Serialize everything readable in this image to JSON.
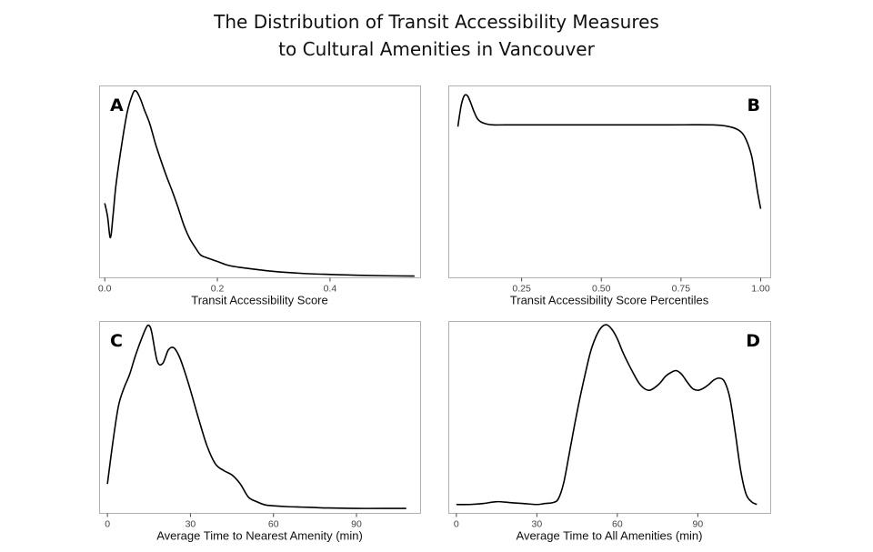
{
  "figure": {
    "title_line1": "The Distribution of Transit Accessibility Measures",
    "title_line2": "to Cultural Amenities in Vancouver"
  },
  "chart_data": [
    {
      "type": "line",
      "panel": "A",
      "letter_position": "top-left",
      "xlabel": "Transit Accessibility Score",
      "ylabel": "",
      "xlim": [
        -0.01,
        0.56
      ],
      "ylim": [
        0,
        14.5
      ],
      "xticks": [
        0.0,
        0.2,
        0.4
      ],
      "xtick_labels": [
        "0.0",
        "0.2",
        "0.4"
      ],
      "grid": false,
      "series": [
        {
          "x": [
            0.0,
            0.005,
            0.01,
            0.015,
            0.02,
            0.03,
            0.04,
            0.05,
            0.055,
            0.06,
            0.065,
            0.07,
            0.08,
            0.09,
            0.1,
            0.11,
            0.12,
            0.13,
            0.14,
            0.15,
            0.16,
            0.17,
            0.18,
            0.2,
            0.22,
            0.25,
            0.3,
            0.35,
            0.4,
            0.45,
            0.5,
            0.55
          ],
          "y": [
            5.6,
            4.6,
            3.0,
            4.8,
            7.0,
            10.0,
            12.5,
            13.9,
            14.1,
            13.8,
            13.3,
            12.7,
            11.6,
            10.1,
            8.8,
            7.6,
            6.5,
            5.3,
            4.0,
            3.0,
            2.3,
            1.7,
            1.5,
            1.2,
            0.9,
            0.7,
            0.45,
            0.3,
            0.22,
            0.16,
            0.12,
            0.1
          ]
        }
      ]
    },
    {
      "type": "line",
      "panel": "B",
      "letter_position": "top-right",
      "xlabel": "Transit Accessibility Score Percentiles",
      "ylabel": "",
      "xlim": [
        0.02,
        1.03
      ],
      "ylim": [
        0,
        1.12
      ],
      "xticks": [
        0.25,
        0.5,
        0.75,
        1.0
      ],
      "xtick_labels": [
        "0.25",
        "0.50",
        "0.75",
        "1.00"
      ],
      "grid": false,
      "series": [
        {
          "x": [
            0.05,
            0.06,
            0.07,
            0.08,
            0.09,
            0.1,
            0.11,
            0.12,
            0.14,
            0.16,
            0.2,
            0.3,
            0.5,
            0.7,
            0.85,
            0.9,
            0.93,
            0.95,
            0.97,
            0.98,
            0.99,
            1.0
          ],
          "y": [
            0.88,
            1.0,
            1.06,
            1.06,
            1.02,
            0.97,
            0.93,
            0.91,
            0.895,
            0.89,
            0.89,
            0.89,
            0.89,
            0.89,
            0.89,
            0.88,
            0.86,
            0.82,
            0.72,
            0.62,
            0.5,
            0.4
          ]
        }
      ]
    },
    {
      "type": "line",
      "panel": "C",
      "letter_position": "top-left",
      "xlabel": "Average Time to Nearest Amenity (min)",
      "ylabel": "",
      "xlim": [
        -3,
        113
      ],
      "ylim": [
        0,
        0.043
      ],
      "xticks": [
        0,
        30,
        60,
        90
      ],
      "xtick_labels": [
        "0",
        "30",
        "60",
        "90"
      ],
      "grid": false,
      "series": [
        {
          "x": [
            0,
            2,
            4,
            6,
            8,
            10,
            12,
            14,
            15,
            16,
            18,
            20,
            22,
            24,
            26,
            28,
            30,
            33,
            36,
            39,
            42,
            45,
            48,
            51,
            54,
            57,
            60,
            65,
            70,
            75,
            80,
            90,
            100,
            108
          ],
          "y": [
            0.0065,
            0.016,
            0.024,
            0.028,
            0.031,
            0.035,
            0.0385,
            0.0415,
            0.042,
            0.0405,
            0.034,
            0.0335,
            0.0365,
            0.037,
            0.035,
            0.0315,
            0.0275,
            0.021,
            0.015,
            0.011,
            0.0095,
            0.0085,
            0.0065,
            0.0035,
            0.0025,
            0.0018,
            0.0016,
            0.0014,
            0.0013,
            0.0012,
            0.0011,
            0.001,
            0.001,
            0.001
          ]
        }
      ]
    },
    {
      "type": "line",
      "panel": "D",
      "letter_position": "top-right",
      "xlabel": "Average Time to All Amenities (min)",
      "ylabel": "",
      "xlim": [
        -3,
        117
      ],
      "ylim": [
        0,
        0.0205
      ],
      "xticks": [
        0,
        30,
        60,
        90
      ],
      "xtick_labels": [
        "0",
        "30",
        "60",
        "90"
      ],
      "grid": false,
      "series": [
        {
          "x": [
            0,
            5,
            10,
            15,
            20,
            25,
            30,
            33,
            36,
            38,
            40,
            42,
            44,
            46,
            48,
            50,
            52,
            54,
            56,
            58,
            60,
            62,
            64,
            66,
            68,
            70,
            72,
            74,
            76,
            78,
            80,
            82,
            84,
            86,
            88,
            90,
            92,
            94,
            96,
            98,
            100,
            102,
            104,
            106,
            108,
            110,
            112
          ],
          "y": [
            0.0009,
            0.0009,
            0.001,
            0.0012,
            0.0011,
            0.001,
            0.0009,
            0.001,
            0.0011,
            0.0015,
            0.0032,
            0.0062,
            0.0093,
            0.0122,
            0.0148,
            0.0172,
            0.0188,
            0.0198,
            0.0201,
            0.0196,
            0.0186,
            0.0172,
            0.016,
            0.0149,
            0.0139,
            0.0133,
            0.0131,
            0.0134,
            0.0139,
            0.0146,
            0.015,
            0.0152,
            0.0148,
            0.014,
            0.0133,
            0.0131,
            0.0133,
            0.0137,
            0.0142,
            0.0144,
            0.014,
            0.0122,
            0.0085,
            0.0045,
            0.002,
            0.0012,
            0.0009
          ]
        }
      ]
    }
  ]
}
